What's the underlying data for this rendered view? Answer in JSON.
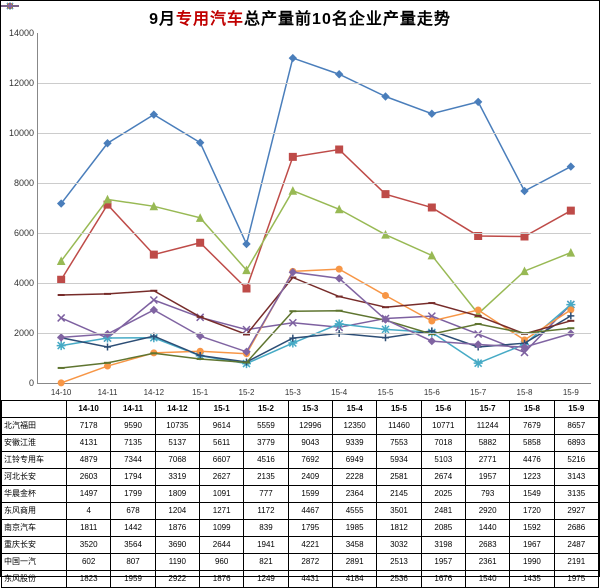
{
  "title": {
    "prefix": "9月",
    "highlight": "专用汽车",
    "suffix": "总产量前10名企业产量走势"
  },
  "chart": {
    "type": "line",
    "ylim": [
      0,
      14000
    ],
    "ytick_step": 2000,
    "categories": [
      "14-10",
      "14-11",
      "14-12",
      "15-1",
      "15-2",
      "15-3",
      "15-4",
      "15-5",
      "15-6",
      "15-7",
      "15-8",
      "15-9"
    ],
    "grid_color": "#cccccc",
    "axis_color": "#888888",
    "background_color": "#ffffff",
    "tick_fontsize": 9,
    "line_width": 1.5,
    "marker_size": 3.5,
    "series": [
      {
        "name": "北汽福田",
        "color": "#4a7ebb",
        "marker": "diamond",
        "values": [
          7178,
          9590,
          10735,
          9614,
          5559,
          12996,
          12350,
          11460,
          10771,
          11244,
          7679,
          8657
        ]
      },
      {
        "name": "安徽江淮",
        "color": "#be4b48",
        "marker": "square",
        "values": [
          4131,
          7135,
          5137,
          5611,
          3779,
          9043,
          9339,
          7553,
          7018,
          5882,
          5858,
          6893
        ]
      },
      {
        "name": "江铃专用车",
        "color": "#98b954",
        "marker": "triangle",
        "values": [
          4879,
          7344,
          7068,
          6607,
          4516,
          7692,
          6949,
          5934,
          5103,
          2771,
          4476,
          5216
        ]
      },
      {
        "name": "河北长安",
        "color": "#7d60a0",
        "marker": "x",
        "values": [
          2603,
          1794,
          3319,
          2627,
          2135,
          2409,
          2228,
          2581,
          2674,
          1957,
          1223,
          3143
        ]
      },
      {
        "name": "华晨金杯",
        "color": "#46aac5",
        "marker": "star",
        "values": [
          1497,
          1799,
          1809,
          1091,
          777,
          1599,
          2364,
          2145,
          2025,
          793,
          1549,
          3135
        ]
      },
      {
        "name": "东风商用",
        "color": "#f79646",
        "marker": "circle",
        "values": [
          4,
          678,
          1204,
          1271,
          1172,
          4467,
          4555,
          3501,
          2481,
          2920,
          1720,
          2927
        ]
      },
      {
        "name": "南京汽车",
        "color": "#2c4d75",
        "marker": "plus",
        "values": [
          1811,
          1442,
          1876,
          1099,
          839,
          1795,
          1985,
          1812,
          2085,
          1440,
          1592,
          2686
        ]
      },
      {
        "name": "重庆长安",
        "color": "#772c2a",
        "marker": "dash",
        "values": [
          3520,
          3564,
          3690,
          2644,
          1941,
          4221,
          3458,
          3032,
          3198,
          2683,
          1967,
          2487
        ]
      },
      {
        "name": "中国一汽",
        "color": "#5f7530",
        "marker": "dash",
        "values": [
          602,
          807,
          1190,
          960,
          821,
          2872,
          2891,
          2513,
          1957,
          2361,
          1990,
          2191
        ]
      },
      {
        "name": "东风股份",
        "color": "#8064a2",
        "marker": "diamond",
        "values": [
          1823,
          1959,
          2922,
          1876,
          1249,
          4431,
          4184,
          2536,
          1676,
          1540,
          1435,
          1975
        ]
      }
    ]
  }
}
